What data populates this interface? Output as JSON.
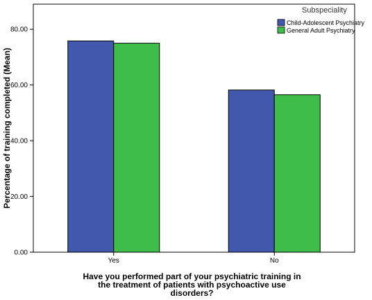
{
  "chart_data": {
    "type": "bar",
    "title": "",
    "xlabel": "Have you performed part of your psychiatric training in the treatment of patients with psychoactive use disorders?",
    "ylabel": "Percentage of training completed (Mean)",
    "categories": [
      "Yes",
      "No"
    ],
    "series": [
      {
        "name": "Child-Adolescent Psychiatry",
        "values": [
          75.8,
          58.2
        ],
        "color": "#4258ac"
      },
      {
        "name": "General Adult Psychiatry",
        "values": [
          75.0,
          56.5
        ],
        "color": "#3fbd4a"
      }
    ],
    "ylim": [
      0,
      89
    ],
    "yticks": [
      "0.00",
      "20.00",
      "40.00",
      "60.00",
      "80.00"
    ],
    "grid": false,
    "legend": {
      "title": "Subspeciality",
      "placement": "top-right"
    }
  }
}
